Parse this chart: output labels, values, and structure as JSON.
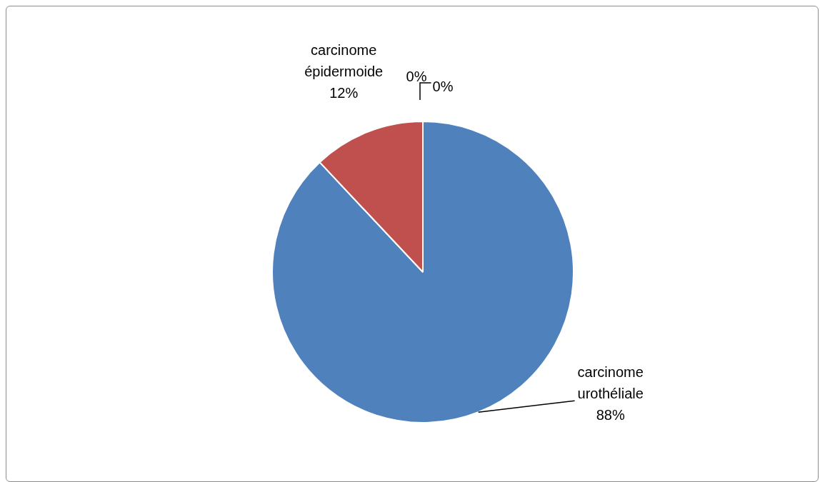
{
  "chart_data": {
    "type": "pie",
    "categories": [
      "carcinome urothéliale",
      "carcinome épidermoide",
      null,
      null
    ],
    "values": [
      88,
      12,
      0,
      0
    ],
    "colors": [
      "#4f81bd",
      "#c0504d",
      "#9bbb59",
      "#8064a2"
    ],
    "value_labels": [
      "88%",
      "12%",
      "0%",
      "0%"
    ],
    "legend": false
  }
}
